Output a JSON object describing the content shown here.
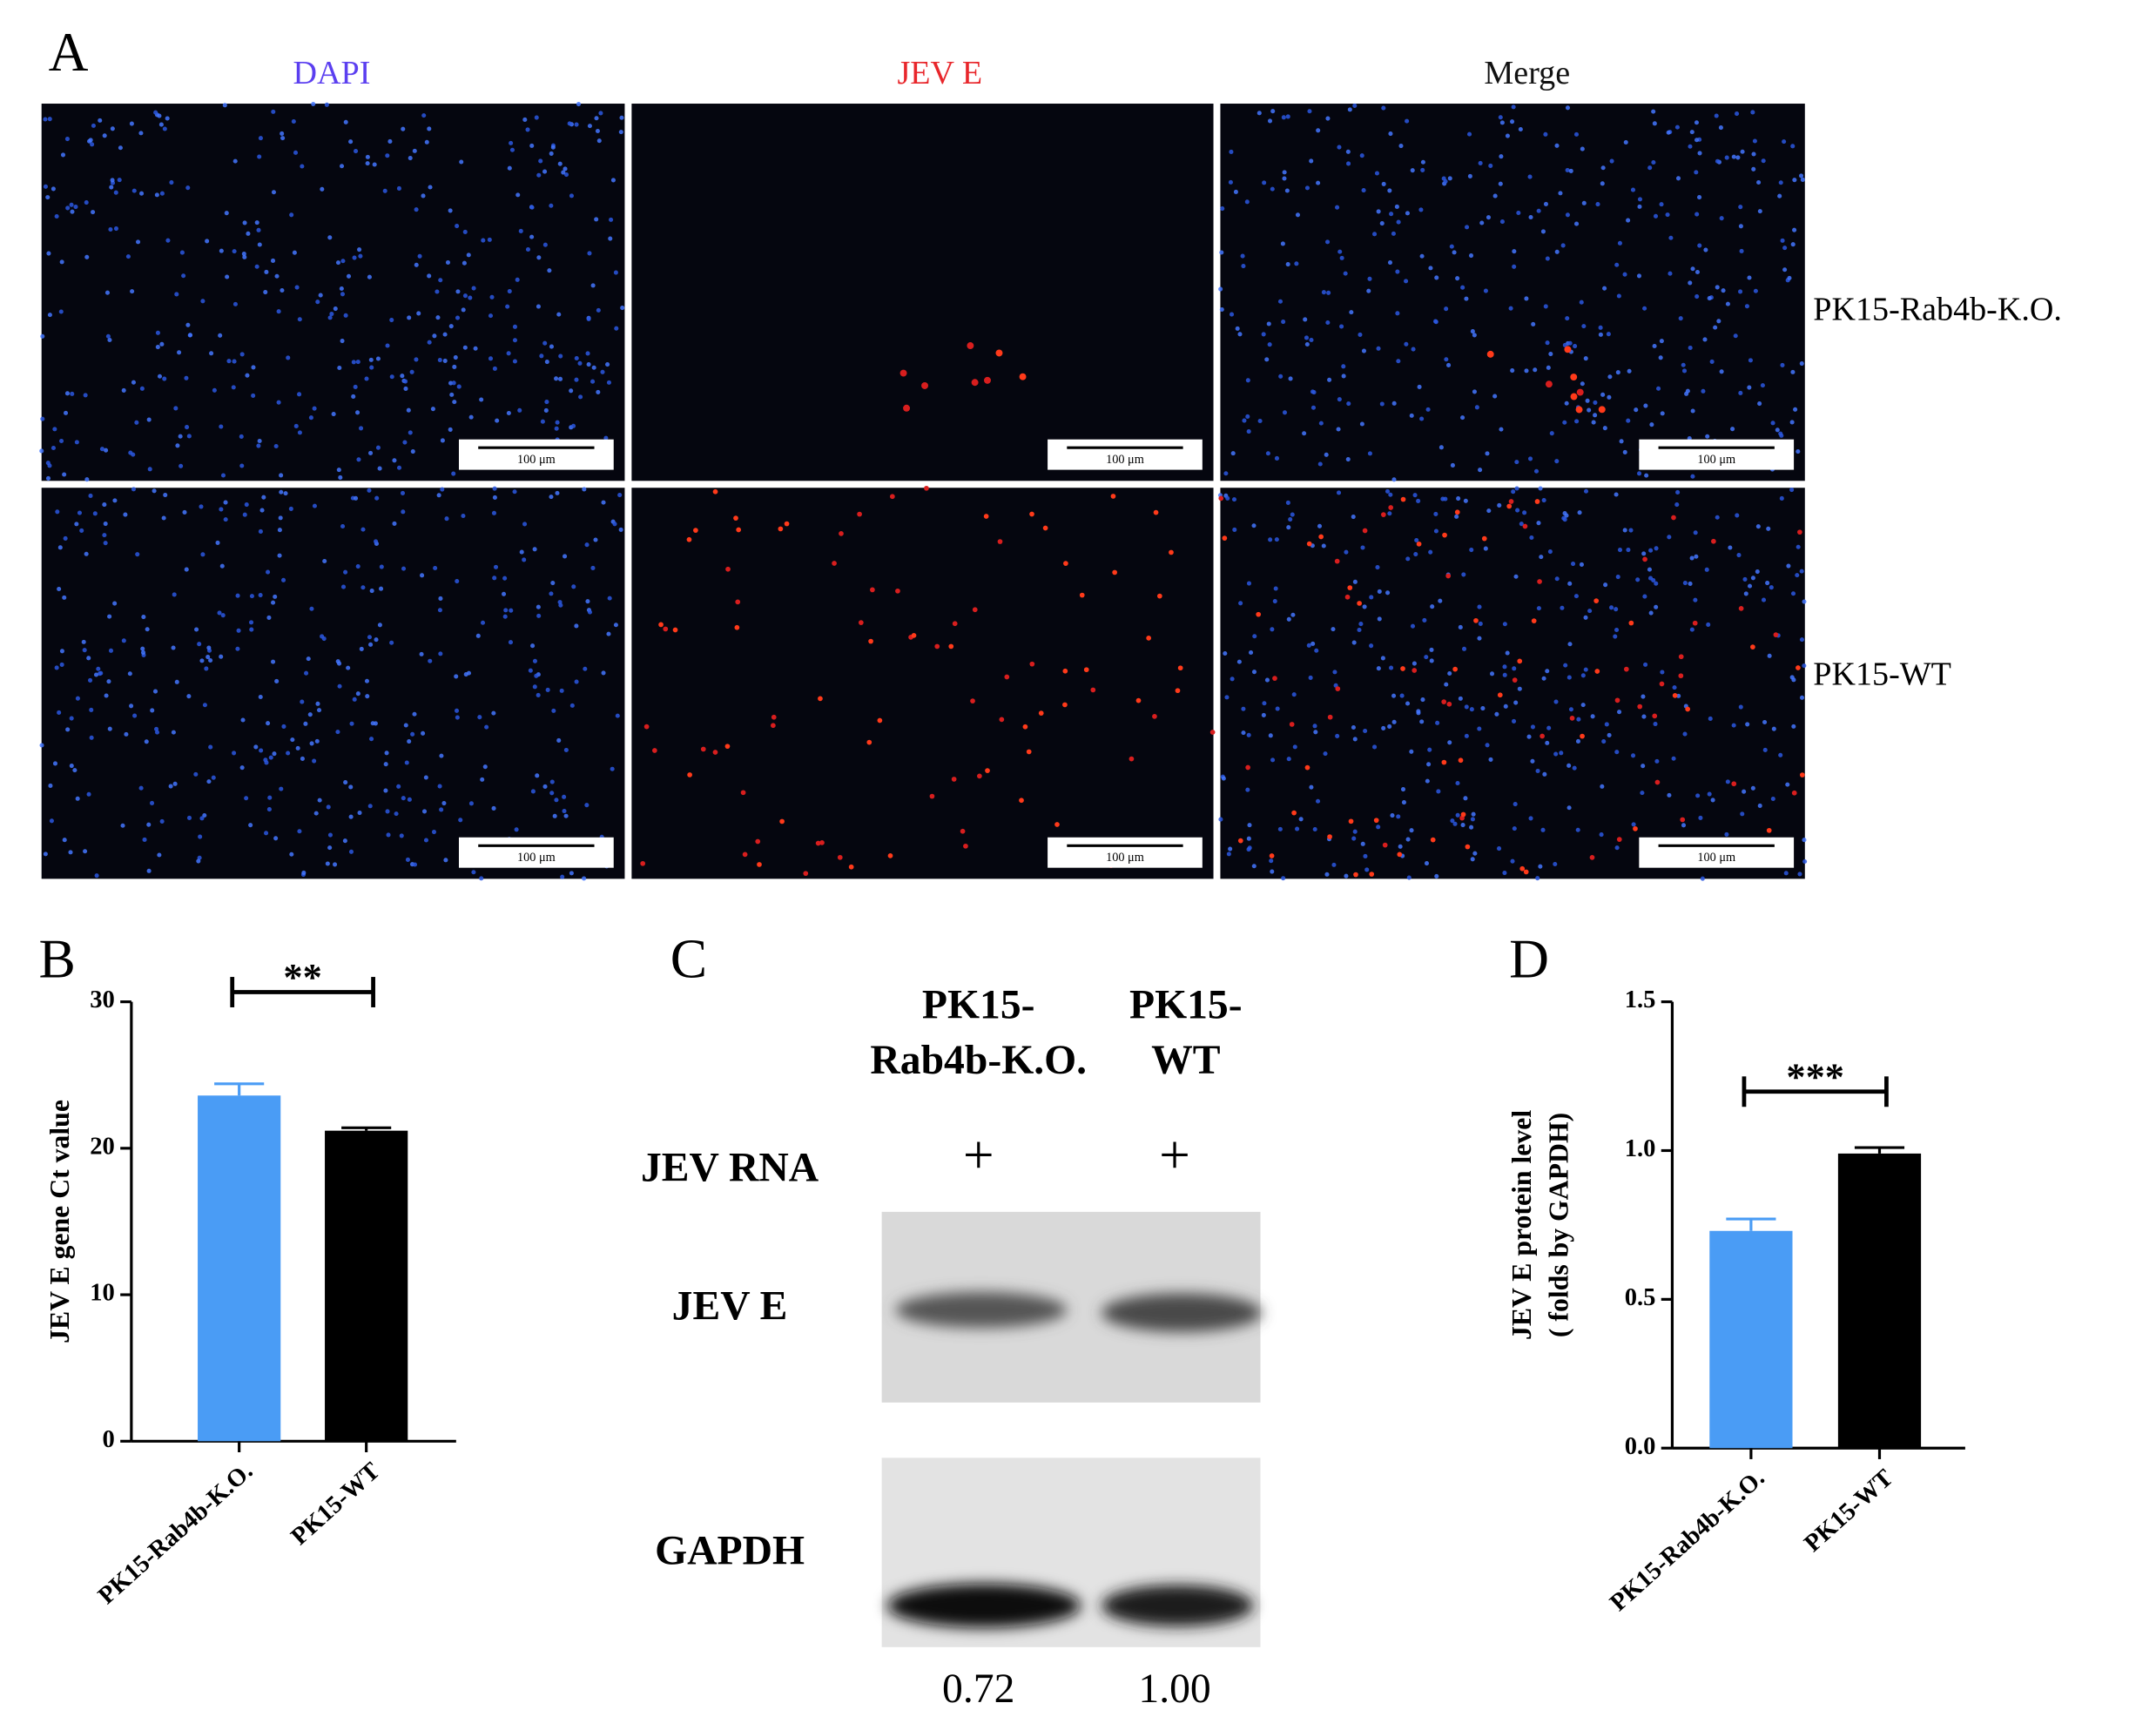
{
  "panel_a": {
    "letter": "A",
    "columns": [
      "DAPI",
      "JEV E",
      "Merge"
    ],
    "rows": [
      "PK15-Rab4b-K.O.",
      "PK15-WT"
    ],
    "scale_bar": "100 μm"
  },
  "panel_c": {
    "letter": "C",
    "lanes": [
      [
        "PK15-",
        "Rab4b-K.O."
      ],
      [
        "PK15-",
        "WT"
      ]
    ],
    "row_labels": [
      "JEV RNA",
      "JEV E",
      "GAPDH"
    ],
    "treatment": [
      "+",
      "+"
    ],
    "quantification": [
      "0.72",
      "1.00"
    ]
  },
  "chart_data": [
    {
      "type": "bar",
      "panel": "B",
      "ylabel": "JEV E gene Ct value",
      "categories": [
        "PK15-Rab4b-K.O.",
        "PK15-WT"
      ],
      "values": [
        23.6,
        21.2
      ],
      "errors": [
        0.8,
        0.2
      ],
      "colors": [
        "#4a9cf5",
        "#000000"
      ],
      "ylim": [
        0,
        30
      ],
      "yticks": [
        0,
        10,
        20,
        30
      ],
      "significance": "**"
    },
    {
      "type": "bar",
      "panel": "D",
      "ylabel": [
        "JEV E protein level",
        "( folds by GAPDH)"
      ],
      "categories": [
        "PK15-Rab4b-K.O.",
        "PK15-WT"
      ],
      "values": [
        0.73,
        0.99
      ],
      "errors": [
        0.04,
        0.02
      ],
      "colors": [
        "#4a9cf5",
        "#000000"
      ],
      "ylim": [
        0,
        1.5
      ],
      "yticks": [
        {
          "value": 0,
          "label": "0.0"
        },
        {
          "value": 0.5,
          "label": "0.5"
        },
        {
          "value": 1,
          "label": "1.0"
        },
        {
          "value": 1.5,
          "label": "1.5"
        }
      ],
      "significance": "***"
    }
  ]
}
